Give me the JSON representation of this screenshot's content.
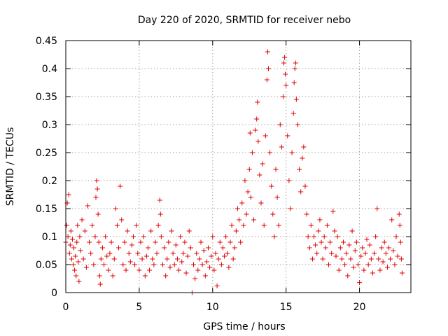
{
  "chart_data": {
    "type": "scatter",
    "title": "Day 220 of 2020, SRMTID for receiver nebo",
    "xlabel": "GPS time / hours",
    "ylabel": "SRMTID / TECUs",
    "xlim": [
      0,
      23.5
    ],
    "ylim": [
      0,
      0.45
    ],
    "x_ticks": [
      0,
      5,
      10,
      15,
      20
    ],
    "x_tick_labels": [
      "0",
      "5",
      "10",
      "15",
      "20"
    ],
    "y_ticks": [
      0,
      0.05,
      0.1,
      0.15,
      0.2,
      0.25,
      0.3,
      0.35,
      0.4,
      0.45
    ],
    "y_tick_labels": [
      "0",
      "0.05",
      "0.1",
      "0.15",
      "0.2",
      "0.25",
      "0.3",
      "0.35",
      "0.4",
      "0.45"
    ],
    "grid": true,
    "marker": "+",
    "color": "#e00000",
    "series": [
      {
        "name": "SRMTID",
        "points": [
          [
            0.0,
            0.09
          ],
          [
            0.05,
            0.12
          ],
          [
            0.1,
            0.16
          ],
          [
            0.15,
            0.1
          ],
          [
            0.2,
            0.175
          ],
          [
            0.25,
            0.07
          ],
          [
            0.3,
            0.085
          ],
          [
            0.35,
            0.11
          ],
          [
            0.4,
            0.06
          ],
          [
            0.45,
            0.095
          ],
          [
            0.5,
            0.05
          ],
          [
            0.55,
            0.08
          ],
          [
            0.6,
            0.04
          ],
          [
            0.65,
            0.065
          ],
          [
            0.7,
            0.03
          ],
          [
            0.75,
            0.09
          ],
          [
            0.8,
            0.12
          ],
          [
            0.85,
            0.055
          ],
          [
            0.9,
            0.02
          ],
          [
            0.95,
            0.1
          ],
          [
            1.0,
            0.075
          ],
          [
            1.1,
            0.13
          ],
          [
            1.2,
            0.06
          ],
          [
            1.3,
            0.11
          ],
          [
            1.4,
            0.045
          ],
          [
            1.5,
            0.155
          ],
          [
            1.6,
            0.09
          ],
          [
            1.7,
            0.07
          ],
          [
            1.8,
            0.12
          ],
          [
            1.9,
            0.05
          ],
          [
            2.0,
            0.1
          ],
          [
            2.05,
            0.17
          ],
          [
            2.1,
            0.2
          ],
          [
            2.15,
            0.185
          ],
          [
            2.2,
            0.14
          ],
          [
            2.25,
            0.09
          ],
          [
            2.3,
            0.03
          ],
          [
            2.35,
            0.015
          ],
          [
            2.4,
            0.06
          ],
          [
            2.5,
            0.08
          ],
          [
            2.6,
            0.05
          ],
          [
            2.7,
            0.1
          ],
          [
            2.8,
            0.065
          ],
          [
            2.9,
            0.04
          ],
          [
            3.0,
            0.07
          ],
          [
            3.1,
            0.09
          ],
          [
            3.2,
            0.03
          ],
          [
            3.3,
            0.06
          ],
          [
            3.4,
            0.15
          ],
          [
            3.5,
            0.12
          ],
          [
            3.6,
            0.08
          ],
          [
            3.7,
            0.19
          ],
          [
            3.8,
            0.13
          ],
          [
            3.9,
            0.05
          ],
          [
            4.0,
            0.09
          ],
          [
            4.1,
            0.04
          ],
          [
            4.2,
            0.11
          ],
          [
            4.3,
            0.07
          ],
          [
            4.4,
            0.055
          ],
          [
            4.5,
            0.085
          ],
          [
            4.6,
            0.1
          ],
          [
            4.7,
            0.05
          ],
          [
            4.8,
            0.12
          ],
          [
            4.9,
            0.07
          ],
          [
            5.0,
            0.04
          ],
          [
            5.1,
            0.09
          ],
          [
            5.2,
            0.06
          ],
          [
            5.3,
            0.1
          ],
          [
            5.4,
            0.03
          ],
          [
            5.5,
            0.065
          ],
          [
            5.6,
            0.08
          ],
          [
            5.7,
            0.04
          ],
          [
            5.8,
            0.11
          ],
          [
            5.9,
            0.06
          ],
          [
            6.0,
            0.05
          ],
          [
            6.1,
            0.09
          ],
          [
            6.2,
            0.07
          ],
          [
            6.3,
            0.12
          ],
          [
            6.4,
            0.165
          ],
          [
            6.45,
            0.14
          ],
          [
            6.5,
            0.1
          ],
          [
            6.6,
            0.05
          ],
          [
            6.7,
            0.08
          ],
          [
            6.8,
            0.03
          ],
          [
            6.9,
            0.06
          ],
          [
            7.0,
            0.09
          ],
          [
            7.1,
            0.045
          ],
          [
            7.2,
            0.11
          ],
          [
            7.3,
            0.07
          ],
          [
            7.4,
            0.05
          ],
          [
            7.5,
            0.085
          ],
          [
            7.6,
            0.06
          ],
          [
            7.7,
            0.04
          ],
          [
            7.8,
            0.1
          ],
          [
            7.9,
            0.055
          ],
          [
            8.0,
            0.07
          ],
          [
            8.1,
            0.09
          ],
          [
            8.2,
            0.035
          ],
          [
            8.3,
            0.065
          ],
          [
            8.4,
            0.11
          ],
          [
            8.5,
            0.08
          ],
          [
            8.6,
            0.0
          ],
          [
            8.7,
            0.05
          ],
          [
            8.8,
            0.025
          ],
          [
            8.9,
            0.07
          ],
          [
            9.0,
            0.04
          ],
          [
            9.1,
            0.06
          ],
          [
            9.2,
            0.09
          ],
          [
            9.3,
            0.05
          ],
          [
            9.4,
            0.075
          ],
          [
            9.5,
            0.03
          ],
          [
            9.6,
            0.055
          ],
          [
            9.7,
            0.08
          ],
          [
            9.8,
            0.045
          ],
          [
            9.9,
            0.065
          ],
          [
            10.0,
            0.1
          ],
          [
            10.1,
            0.04
          ],
          [
            10.2,
            0.07
          ],
          [
            10.3,
            0.012
          ],
          [
            10.4,
            0.06
          ],
          [
            10.5,
            0.09
          ],
          [
            10.6,
            0.05
          ],
          [
            10.7,
            0.08
          ],
          [
            10.8,
            0.065
          ],
          [
            10.9,
            0.1
          ],
          [
            11.0,
            0.07
          ],
          [
            11.1,
            0.045
          ],
          [
            11.2,
            0.09
          ],
          [
            11.3,
            0.12
          ],
          [
            11.4,
            0.06
          ],
          [
            11.5,
            0.08
          ],
          [
            11.6,
            0.11
          ],
          [
            11.7,
            0.15
          ],
          [
            11.8,
            0.13
          ],
          [
            11.9,
            0.09
          ],
          [
            12.0,
            0.16
          ],
          [
            12.1,
            0.12
          ],
          [
            12.2,
            0.2
          ],
          [
            12.3,
            0.14
          ],
          [
            12.4,
            0.18
          ],
          [
            12.5,
            0.22
          ],
          [
            12.55,
            0.285
          ],
          [
            12.6,
            0.17
          ],
          [
            12.7,
            0.25
          ],
          [
            12.8,
            0.13
          ],
          [
            12.9,
            0.29
          ],
          [
            13.0,
            0.31
          ],
          [
            13.05,
            0.34
          ],
          [
            13.1,
            0.27
          ],
          [
            13.2,
            0.21
          ],
          [
            13.3,
            0.16
          ],
          [
            13.4,
            0.23
          ],
          [
            13.5,
            0.12
          ],
          [
            13.6,
            0.28
          ],
          [
            13.7,
            0.38
          ],
          [
            13.75,
            0.43
          ],
          [
            13.8,
            0.4
          ],
          [
            13.9,
            0.25
          ],
          [
            14.0,
            0.19
          ],
          [
            14.1,
            0.14
          ],
          [
            14.2,
            0.1
          ],
          [
            14.3,
            0.22
          ],
          [
            14.4,
            0.17
          ],
          [
            14.5,
            0.12
          ],
          [
            14.6,
            0.3
          ],
          [
            14.7,
            0.26
          ],
          [
            14.8,
            0.35
          ],
          [
            14.85,
            0.41
          ],
          [
            14.9,
            0.42
          ],
          [
            14.95,
            0.39
          ],
          [
            15.0,
            0.37
          ],
          [
            15.1,
            0.28
          ],
          [
            15.2,
            0.2
          ],
          [
            15.3,
            0.15
          ],
          [
            15.4,
            0.25
          ],
          [
            15.5,
            0.32
          ],
          [
            15.55,
            0.375
          ],
          [
            15.6,
            0.4
          ],
          [
            15.65,
            0.41
          ],
          [
            15.7,
            0.345
          ],
          [
            15.8,
            0.3
          ],
          [
            15.9,
            0.22
          ],
          [
            16.0,
            0.18
          ],
          [
            16.1,
            0.24
          ],
          [
            16.2,
            0.26
          ],
          [
            16.3,
            0.19
          ],
          [
            16.4,
            0.14
          ],
          [
            16.5,
            0.1
          ],
          [
            16.6,
            0.08
          ],
          [
            16.7,
            0.12
          ],
          [
            16.8,
            0.06
          ],
          [
            16.9,
            0.1
          ],
          [
            17.0,
            0.085
          ],
          [
            17.1,
            0.07
          ],
          [
            17.2,
            0.11
          ],
          [
            17.3,
            0.13
          ],
          [
            17.4,
            0.09
          ],
          [
            17.5,
            0.06
          ],
          [
            17.6,
            0.1
          ],
          [
            17.7,
            0.08
          ],
          [
            17.8,
            0.12
          ],
          [
            17.9,
            0.05
          ],
          [
            18.0,
            0.09
          ],
          [
            18.1,
            0.07
          ],
          [
            18.2,
            0.145
          ],
          [
            18.3,
            0.11
          ],
          [
            18.4,
            0.065
          ],
          [
            18.5,
            0.1
          ],
          [
            18.6,
            0.04
          ],
          [
            18.7,
            0.08
          ],
          [
            18.8,
            0.06
          ],
          [
            18.9,
            0.09
          ],
          [
            19.0,
            0.05
          ],
          [
            19.1,
            0.07
          ],
          [
            19.2,
            0.03
          ],
          [
            19.3,
            0.085
          ],
          [
            19.4,
            0.06
          ],
          [
            19.5,
            0.11
          ],
          [
            19.6,
            0.045
          ],
          [
            19.7,
            0.075
          ],
          [
            19.8,
            0.09
          ],
          [
            19.9,
            0.05
          ],
          [
            20.0,
            0.018
          ],
          [
            20.1,
            0.065
          ],
          [
            20.2,
            0.08
          ],
          [
            20.3,
            0.04
          ],
          [
            20.4,
            0.07
          ],
          [
            20.5,
            0.095
          ],
          [
            20.6,
            0.05
          ],
          [
            20.7,
            0.085
          ],
          [
            20.8,
            0.06
          ],
          [
            20.9,
            0.035
          ],
          [
            21.0,
            0.07
          ],
          [
            21.1,
            0.1
          ],
          [
            21.2,
            0.15
          ],
          [
            21.3,
            0.06
          ],
          [
            21.4,
            0.04
          ],
          [
            21.5,
            0.08
          ],
          [
            21.6,
            0.055
          ],
          [
            21.7,
            0.09
          ],
          [
            21.8,
            0.07
          ],
          [
            21.9,
            0.045
          ],
          [
            22.0,
            0.08
          ],
          [
            22.1,
            0.06
          ],
          [
            22.2,
            0.13
          ],
          [
            22.3,
            0.075
          ],
          [
            22.4,
            0.05
          ],
          [
            22.5,
            0.1
          ],
          [
            22.6,
            0.065
          ],
          [
            22.7,
            0.14
          ],
          [
            22.75,
            0.12
          ],
          [
            22.8,
            0.09
          ],
          [
            22.85,
            0.06
          ],
          [
            22.9,
            0.035
          ]
        ]
      }
    ]
  }
}
